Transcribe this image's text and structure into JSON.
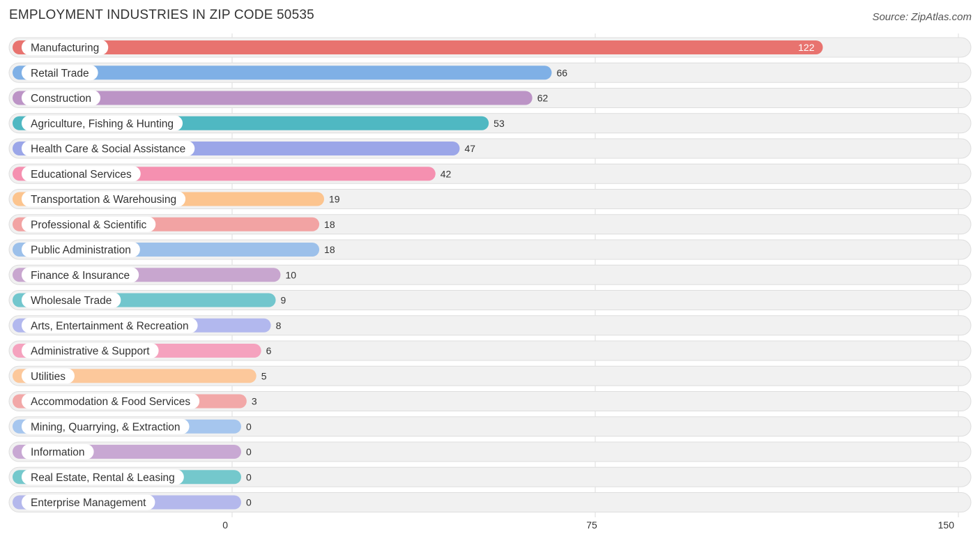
{
  "chart_data": {
    "type": "bar",
    "orientation": "horizontal",
    "title": "EMPLOYMENT INDUSTRIES IN ZIP CODE 50535",
    "source": "Source: ZipAtlas.com",
    "xlim": [
      0,
      150
    ],
    "ticks": [
      0,
      75,
      150
    ],
    "categories": [
      "Manufacturing",
      "Retail Trade",
      "Construction",
      "Agriculture, Fishing & Hunting",
      "Health Care & Social Assistance",
      "Educational Services",
      "Transportation & Warehousing",
      "Professional & Scientific",
      "Public Administration",
      "Finance & Insurance",
      "Wholesale Trade",
      "Arts, Entertainment & Recreation",
      "Administrative & Support",
      "Utilities",
      "Accommodation & Food Services",
      "Mining, Quarrying, & Extraction",
      "Information",
      "Real Estate, Rental & Leasing",
      "Enterprise Management"
    ],
    "values": [
      122,
      66,
      62,
      53,
      47,
      42,
      19,
      18,
      18,
      10,
      9,
      8,
      6,
      5,
      3,
      0,
      0,
      0,
      0
    ],
    "colors": [
      "#e8736f",
      "#7fb0e6",
      "#bc94c6",
      "#4fb8c2",
      "#9ba6e8",
      "#f590b0",
      "#fcc48e",
      "#f2a3a3",
      "#9cc0ea",
      "#c8a6cf",
      "#72c6cd",
      "#b2b8ee",
      "#f5a2be",
      "#fcc89b",
      "#f2a8a8",
      "#a6c6ee",
      "#c8a8d3",
      "#74c8cc",
      "#b4b8ec"
    ]
  }
}
